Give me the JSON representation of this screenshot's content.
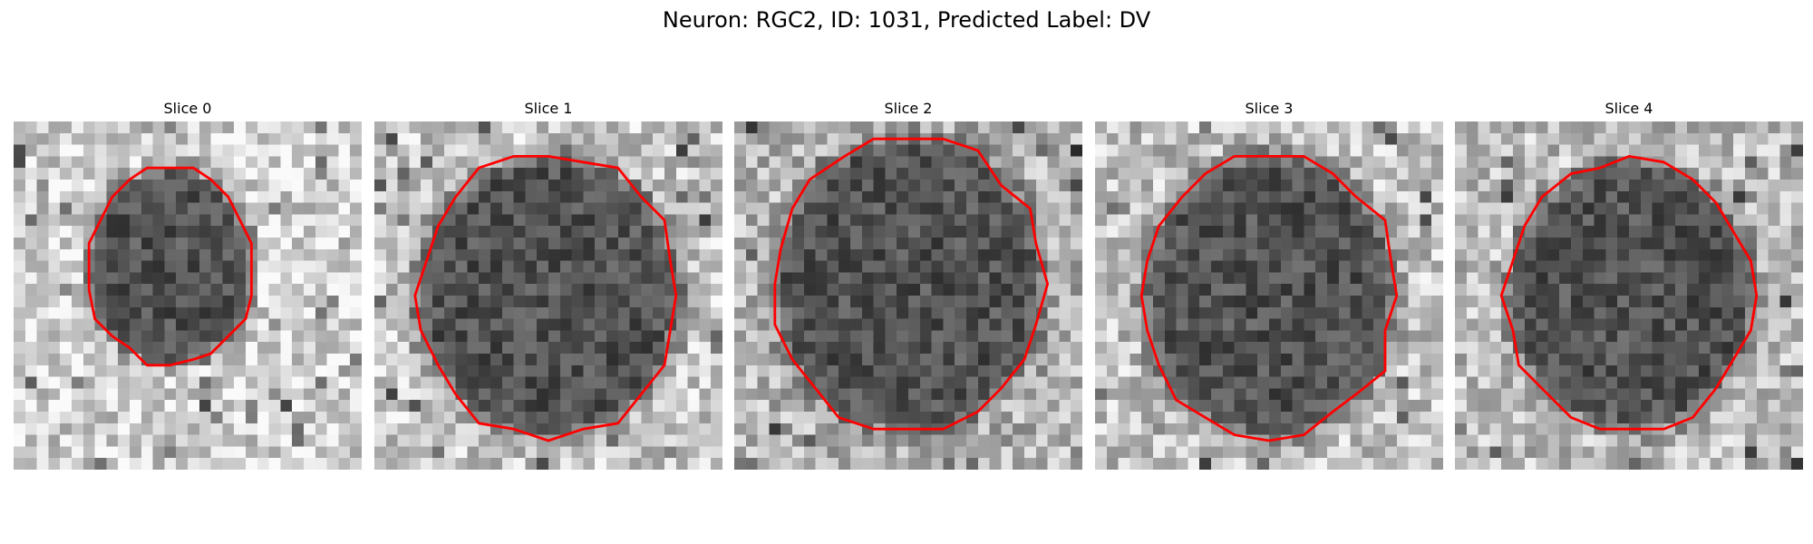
{
  "figure": {
    "title": "Neuron: RGC2, ID: 1031, Predicted Label: DV"
  },
  "panels": [
    {
      "title": "Slice 0",
      "image": "grayscale microscopy crop with cell soma outlined in red",
      "seed": 11
    },
    {
      "title": "Slice 1",
      "image": "grayscale microscopy crop with cell soma outlined in red",
      "seed": 23
    },
    {
      "title": "Slice 2",
      "image": "grayscale microscopy crop with cell soma outlined in red",
      "seed": 37
    },
    {
      "title": "Slice 3",
      "image": "grayscale microscopy crop with cell soma outlined in red",
      "seed": 41
    },
    {
      "title": "Slice 4",
      "image": "grayscale microscopy crop with cell soma outlined in red",
      "seed": 53
    }
  ],
  "colors": {
    "outline": "#ff0000",
    "background": "#ffffff"
  }
}
